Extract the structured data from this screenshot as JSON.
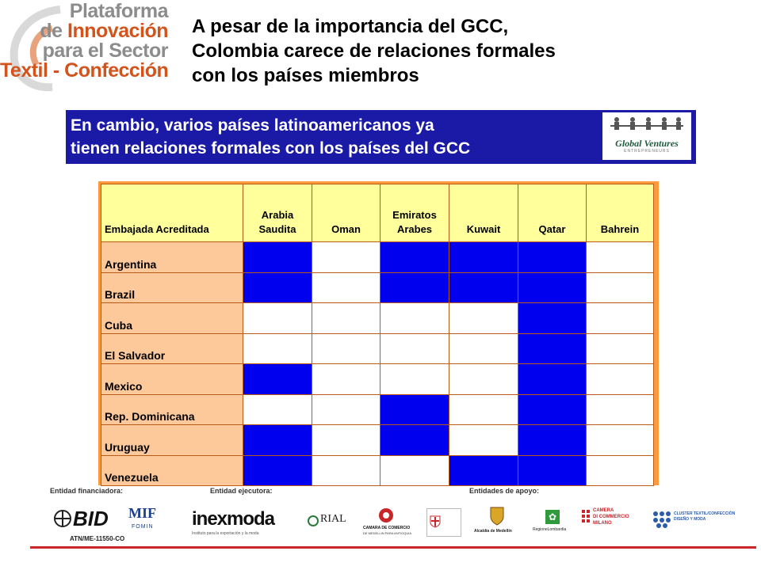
{
  "logo": {
    "line1": "Plataforma",
    "line2_prefix": "de ",
    "line2_highlight": "Innovación",
    "line3": "para el Sector",
    "line4": "Textil - Confección"
  },
  "title": {
    "line1": "A pesar de la importancia del GCC,",
    "line2": "Colombia carece de relaciones formales",
    "line3": "con los países miembros"
  },
  "banner": {
    "line1": "En cambio, varios países latinoamericanos ya",
    "line2": "tienen relaciones formales con los países del GCC",
    "logo_name": "Global Ventures",
    "logo_sub": "ENTREPRENEURS"
  },
  "table": {
    "corner": "Embajada Acreditada",
    "columns": [
      {
        "line1": "Arabia",
        "line2": "Saudita"
      },
      {
        "line1": "",
        "line2": "Oman"
      },
      {
        "line1": "Emiratos",
        "line2": "Arabes"
      },
      {
        "line1": "",
        "line2": "Kuwait"
      },
      {
        "line1": "",
        "line2": "Qatar"
      },
      {
        "line1": "",
        "line2": "Bahrein"
      }
    ],
    "rows": [
      {
        "label": "Argentina",
        "flags": [
          1,
          0,
          1,
          1,
          1,
          0
        ]
      },
      {
        "label": "Brazil",
        "flags": [
          1,
          0,
          1,
          1,
          1,
          0
        ]
      },
      {
        "label": "Cuba",
        "flags": [
          0,
          0,
          0,
          0,
          1,
          0
        ]
      },
      {
        "label": "El Salvador",
        "flags": [
          0,
          0,
          0,
          0,
          1,
          0
        ]
      },
      {
        "label": "Mexico",
        "flags": [
          1,
          0,
          0,
          0,
          1,
          0
        ]
      },
      {
        "label": "Rep. Dominicana",
        "flags": [
          0,
          0,
          1,
          0,
          1,
          0
        ]
      },
      {
        "label": "Uruguay",
        "flags": [
          1,
          0,
          1,
          0,
          1,
          0
        ]
      },
      {
        "label": "Venezuela",
        "flags": [
          1,
          0,
          0,
          1,
          1,
          0
        ]
      }
    ],
    "colors": {
      "on": "#0000ee",
      "off": "#ffffff",
      "header": "#ffff9c",
      "label": "#fdc89a",
      "border": "#ff9a3c"
    }
  },
  "footer": {
    "label_financiadora": "Entidad financiadora:",
    "label_ejecutora": "Entidad ejecutora:",
    "label_apoyo": "Entidades de apoyo:",
    "bid": "BID",
    "mif": "MIF",
    "mif_sub": "FOMIN",
    "atn": "ATN/ME-11550-CO",
    "inexmoda": "inexmoda",
    "inexmoda_sub": "Instituto para la exportación y la moda",
    "rial": "RIAL",
    "camara": "CAMARA DE COMERCIO",
    "camara_sub": "DE MEDELLIN PARA ANTIOQUIA",
    "alcaldia": "Alcaldía de Medellín",
    "regione": "RegioneLombardia",
    "camera_milano_1": "CAMERA",
    "camera_milano_2": "DI COMMERCIO",
    "camera_milano_3": "MILANO",
    "cluster": "CLUSTER TEXTIL/CONFECCIÓN DISEÑO Y MODA"
  }
}
